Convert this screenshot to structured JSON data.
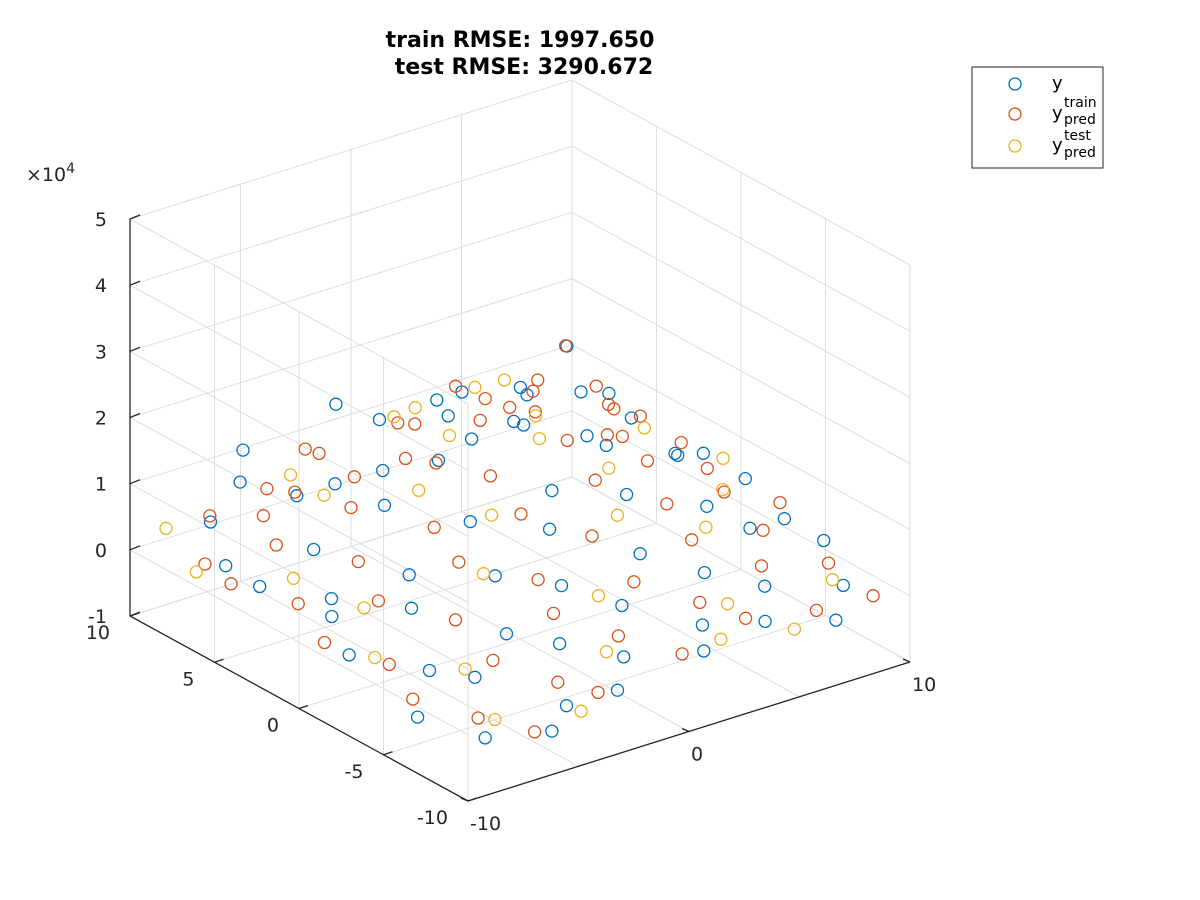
{
  "chart_data": {
    "type": "scatter",
    "projection": "3d",
    "title": [
      "train RMSE: 1997.650",
      "test RMSE: 3290.672"
    ],
    "xlim": [
      -10,
      10
    ],
    "ylim": [
      -10,
      10
    ],
    "zlim": [
      -10000,
      50000
    ],
    "xticks": [
      -10,
      0,
      10
    ],
    "xtick_labels": [
      "-10",
      "0",
      "10"
    ],
    "yticks": [
      -10,
      -5,
      0,
      5,
      10
    ],
    "ytick_labels": [
      "-10",
      "-5",
      "0",
      "5",
      "10"
    ],
    "zticks": [
      -10000,
      0,
      10000,
      20000,
      30000,
      40000,
      50000
    ],
    "ztick_labels": [
      "-1",
      "0",
      "1",
      "2",
      "3",
      "4",
      "5"
    ],
    "z_exponent_label": "×10",
    "z_exponent_power": "4",
    "grid": true,
    "marker": "open-circle",
    "legend": {
      "placement": "top-right",
      "entries": [
        {
          "base": "y",
          "sup": "",
          "sub": ""
        },
        {
          "base": "y",
          "sup": "train",
          "sub": "pred"
        },
        {
          "base": "y",
          "sup": "test",
          "sub": "pred"
        }
      ]
    },
    "series": [
      {
        "name": "y",
        "color": "#0072BD",
        "points": [
          [
            -7.2,
            8.9,
            2800
          ],
          [
            -5.4,
            9.5,
            6100
          ],
          [
            -2.1,
            8.2,
            4200
          ],
          [
            0.6,
            9.1,
            9800
          ],
          [
            3.8,
            8.4,
            11600
          ],
          [
            6.9,
            9.0,
            8200
          ],
          [
            8.7,
            8.6,
            13100
          ],
          [
            -8.5,
            6.3,
            1200
          ],
          [
            -4.9,
            6.8,
            7300
          ],
          [
            -1.7,
            5.9,
            9000
          ],
          [
            1.8,
            6.6,
            12600
          ],
          [
            4.6,
            5.8,
            9400
          ],
          [
            7.5,
            6.2,
            10800
          ],
          [
            9.3,
            6.9,
            7700
          ],
          [
            -9.1,
            3.5,
            2600
          ],
          [
            -6.2,
            4.1,
            4300
          ],
          [
            -3.3,
            3.7,
            8500
          ],
          [
            -0.4,
            4.3,
            11400
          ],
          [
            2.7,
            3.9,
            14600
          ],
          [
            5.4,
            3.1,
            10700
          ],
          [
            8.1,
            4.0,
            9300
          ],
          [
            -7.6,
            1.2,
            -300
          ],
          [
            -4.4,
            0.8,
            3200
          ],
          [
            -1.1,
            1.5,
            6800
          ],
          [
            1.9,
            0.6,
            9600
          ],
          [
            4.9,
            1.3,
            12300
          ],
          [
            7.7,
            0.9,
            8700
          ],
          [
            9.6,
            1.7,
            5600
          ],
          [
            -8.8,
            -1.4,
            -1200
          ],
          [
            -5.6,
            -0.9,
            1800
          ],
          [
            -2.5,
            -1.8,
            4700
          ],
          [
            0.5,
            -1.1,
            7600
          ],
          [
            3.6,
            -1.6,
            10300
          ],
          [
            6.6,
            -0.7,
            11800
          ],
          [
            9.2,
            -1.3,
            6400
          ],
          [
            -7.0,
            -3.8,
            -2100
          ],
          [
            -3.9,
            -4.3,
            900
          ],
          [
            -0.8,
            -3.5,
            3800
          ],
          [
            2.3,
            -4.1,
            6200
          ],
          [
            5.7,
            -3.6,
            9100
          ],
          [
            8.6,
            -4.4,
            5300
          ],
          [
            -9.3,
            -6.1,
            -3500
          ],
          [
            -6.4,
            -5.7,
            -1100
          ],
          [
            -3.1,
            -6.4,
            1500
          ],
          [
            0.1,
            -5.9,
            3200
          ],
          [
            3.3,
            -6.6,
            5800
          ],
          [
            6.2,
            -5.5,
            7900
          ],
          [
            9.0,
            -6.2,
            4100
          ],
          [
            -8.0,
            -8.4,
            -4800
          ],
          [
            -4.7,
            -8.9,
            -2700
          ],
          [
            -1.5,
            -8.1,
            200
          ],
          [
            1.6,
            -8.7,
            2600
          ],
          [
            4.8,
            -8.2,
            4400
          ],
          [
            7.9,
            -8.8,
            2100
          ],
          [
            -5.9,
            -9.6,
            -4300
          ],
          [
            -2.7,
            -9.3,
            -1900
          ],
          [
            0.9,
            -9.7,
            800
          ],
          [
            3.9,
            -9.4,
            1700
          ],
          [
            6.8,
            -9.8,
            -600
          ],
          [
            -6.8,
            7.5,
            15200
          ],
          [
            -2.9,
            7.1,
            18600
          ],
          [
            2.2,
            7.8,
            12900
          ],
          [
            5.9,
            7.3,
            10500
          ],
          [
            -8.3,
            0.3,
            4400
          ],
          [
            -0.2,
            2.6,
            16800
          ]
        ]
      },
      {
        "name": "y_pred^train",
        "color": "#D95319",
        "points": [
          [
            -7.0,
            9.2,
            3100
          ],
          [
            -4.8,
            8.7,
            5600
          ],
          [
            -1.9,
            9.4,
            6900
          ],
          [
            1.2,
            8.8,
            9100
          ],
          [
            4.2,
            9.3,
            10800
          ],
          [
            7.3,
            8.5,
            9600
          ],
          [
            9.1,
            9.2,
            11900
          ],
          [
            -8.9,
            7.0,
            900
          ],
          [
            -5.8,
            7.6,
            4100
          ],
          [
            -2.6,
            6.4,
            8300
          ],
          [
            0.9,
            7.4,
            11200
          ],
          [
            3.7,
            6.9,
            12800
          ],
          [
            6.4,
            7.6,
            10100
          ],
          [
            8.8,
            7.0,
            9200
          ],
          [
            -9.4,
            4.8,
            1500
          ],
          [
            -6.9,
            5.4,
            3900
          ],
          [
            -3.9,
            4.9,
            7100
          ],
          [
            -0.9,
            5.6,
            10400
          ],
          [
            2.1,
            5.1,
            13700
          ],
          [
            4.9,
            5.5,
            11500
          ],
          [
            7.6,
            4.7,
            10900
          ],
          [
            9.5,
            5.3,
            6300
          ],
          [
            -8.2,
            2.4,
            600
          ],
          [
            -5.1,
            2.9,
            3000
          ],
          [
            -2.2,
            2.2,
            6100
          ],
          [
            0.8,
            2.8,
            9900
          ],
          [
            3.9,
            2.3,
            12700
          ],
          [
            6.7,
            2.7,
            9800
          ],
          [
            8.9,
            2.1,
            7400
          ],
          [
            -9.0,
            -0.2,
            -800
          ],
          [
            -6.1,
            0.4,
            1600
          ],
          [
            -3.0,
            -0.3,
            5200
          ],
          [
            0.2,
            0.2,
            8400
          ],
          [
            3.1,
            -0.4,
            11300
          ],
          [
            6.0,
            0.3,
            10200
          ],
          [
            8.4,
            -0.1,
            7100
          ],
          [
            -7.9,
            -2.6,
            -1900
          ],
          [
            -4.6,
            -2.2,
            800
          ],
          [
            -1.4,
            -2.9,
            4500
          ],
          [
            1.5,
            -2.3,
            7200
          ],
          [
            4.5,
            -2.8,
            9600
          ],
          [
            7.4,
            -2.4,
            7800
          ],
          [
            9.7,
            -2.7,
            4200
          ],
          [
            -8.6,
            -4.9,
            -3200
          ],
          [
            -5.2,
            -5.2,
            -500
          ],
          [
            -2.0,
            -4.6,
            2400
          ],
          [
            1.1,
            -5.3,
            4900
          ],
          [
            4.1,
            -4.8,
            7400
          ],
          [
            7.1,
            -5.1,
            6100
          ],
          [
            -7.4,
            -7.2,
            -4100
          ],
          [
            -4.1,
            -7.6,
            -1600
          ],
          [
            -0.9,
            -7.0,
            1200
          ],
          [
            2.4,
            -7.5,
            3500
          ],
          [
            5.5,
            -7.1,
            5200
          ],
          [
            8.3,
            -7.4,
            3100
          ],
          [
            -6.3,
            -9.1,
            -4700
          ],
          [
            -3.2,
            -8.8,
            -2400
          ],
          [
            0.3,
            -9.2,
            300
          ],
          [
            3.4,
            -8.9,
            2000
          ],
          [
            6.3,
            -9.3,
            700
          ],
          [
            9.4,
            -8.6,
            -1300
          ],
          [
            -5.6,
            6.0,
            9700
          ],
          [
            -1.2,
            3.4,
            13100
          ],
          [
            2.9,
            4.4,
            15800
          ],
          [
            5.1,
            1.5,
            13400
          ],
          [
            -3.6,
            8.0,
            11300
          ],
          [
            7.0,
            3.6,
            12400
          ]
        ]
      },
      {
        "name": "y_pred^test",
        "color": "#EDB120",
        "points": [
          [
            -8.6,
            9.7,
            2200
          ],
          [
            -3.5,
            9.0,
            5900
          ],
          [
            2.6,
            9.6,
            8800
          ],
          [
            6.1,
            8.9,
            10300
          ],
          [
            -9.6,
            6.6,
            1000
          ],
          [
            -4.2,
            6.1,
            7600
          ],
          [
            1.4,
            6.0,
            10900
          ],
          [
            5.6,
            6.4,
            8900
          ],
          [
            -7.8,
            3.2,
            2900
          ],
          [
            -1.6,
            3.9,
            8700
          ],
          [
            3.4,
            3.3,
            12100
          ],
          [
            8.3,
            3.5,
            8300
          ],
          [
            -6.6,
            0.6,
            800
          ],
          [
            -0.6,
            0.9,
            8100
          ],
          [
            4.4,
            0.5,
            10500
          ],
          [
            9.8,
            0.8,
            5900
          ],
          [
            -8.1,
            -2.0,
            -1500
          ],
          [
            -2.8,
            -1.5,
            4900
          ],
          [
            2.8,
            -2.1,
            8700
          ],
          [
            7.8,
            -1.8,
            6900
          ],
          [
            -6.0,
            -4.6,
            -1800
          ],
          [
            -0.2,
            -4.9,
            3600
          ],
          [
            5.2,
            -4.2,
            7300
          ],
          [
            -7.1,
            -7.8,
            -3800
          ],
          [
            -1.9,
            -7.6,
            700
          ],
          [
            3.2,
            -8.1,
            3300
          ],
          [
            8.1,
            -7.9,
            1500
          ],
          [
            -4.5,
            -9.5,
            -2900
          ],
          [
            1.9,
            -9.4,
            1100
          ],
          [
            5.0,
            -9.7,
            -200
          ],
          [
            -0.5,
            6.8,
            14600
          ],
          [
            4.0,
            7.9,
            12800
          ]
        ]
      }
    ]
  }
}
